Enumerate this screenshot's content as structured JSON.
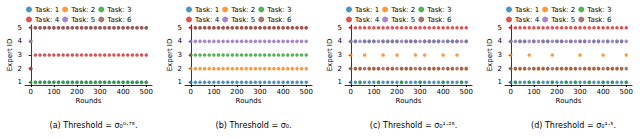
{
  "chart_data": [
    {
      "type": "scatter",
      "title": "(a) Threshold = σ₀⁰·⁷⁵.",
      "x_label": "Rounds",
      "y_label": "Expert ID",
      "x": [
        0,
        20,
        40,
        60,
        80,
        100,
        120,
        140,
        160,
        180,
        200,
        220,
        240,
        260,
        280,
        300,
        320,
        340,
        360,
        380,
        400,
        420,
        440,
        460,
        480,
        500
      ],
      "xlim": [
        -25,
        525
      ],
      "xticks": [
        0,
        100,
        200,
        300,
        400,
        500
      ],
      "ylim": [
        0.8,
        5.2
      ],
      "yticks": [
        1,
        2,
        3,
        4,
        5
      ],
      "grid": false,
      "legend": "top",
      "marker": "o",
      "series": [
        {
          "name": "Task: 1",
          "color": "#1f77b4",
          "values": [
            2,
            1,
            1,
            1,
            1,
            1,
            1,
            1,
            1,
            1,
            1,
            1,
            1,
            1,
            1,
            1,
            1,
            1,
            1,
            1,
            1,
            1,
            1,
            1,
            1,
            1
          ]
        },
        {
          "name": "Task: 2",
          "color": "#ff7f0e",
          "values": [
            4,
            5,
            5,
            5,
            5,
            5,
            5,
            5,
            5,
            5,
            5,
            5,
            5,
            5,
            5,
            5,
            5,
            5,
            5,
            5,
            5,
            5,
            5,
            5,
            5,
            5
          ]
        },
        {
          "name": "Task: 3",
          "color": "#2ca02c",
          "values": [
            1,
            1,
            1,
            1,
            1,
            1,
            1,
            1,
            1,
            1,
            1,
            1,
            1,
            1,
            1,
            1,
            1,
            1,
            1,
            1,
            1,
            1,
            1,
            1,
            1,
            1
          ]
        },
        {
          "name": "Task: 4",
          "color": "#d62728",
          "values": [
            2,
            3,
            3,
            3,
            3,
            3,
            3,
            3,
            3,
            3,
            3,
            3,
            3,
            3,
            3,
            3,
            3,
            3,
            3,
            3,
            3,
            3,
            3,
            3,
            3,
            3
          ]
        },
        {
          "name": "Task: 5",
          "color": "#9467bd",
          "values": [
            4,
            5,
            5,
            5,
            5,
            5,
            5,
            5,
            5,
            5,
            5,
            5,
            5,
            5,
            5,
            5,
            5,
            5,
            5,
            5,
            5,
            5,
            5,
            5,
            5,
            5
          ]
        },
        {
          "name": "Task: 6",
          "color": "#8c564b",
          "values": [
            5,
            5,
            5,
            5,
            5,
            5,
            5,
            5,
            5,
            5,
            5,
            5,
            5,
            5,
            5,
            5,
            5,
            5,
            5,
            5,
            5,
            5,
            5,
            5,
            5,
            5
          ]
        }
      ]
    },
    {
      "type": "scatter",
      "title": "(b) Threshold = σ₀.",
      "x_label": "Rounds",
      "y_label": "Expert ID",
      "x": [
        0,
        20,
        40,
        60,
        80,
        100,
        120,
        140,
        160,
        180,
        200,
        220,
        240,
        260,
        280,
        300,
        320,
        340,
        360,
        380,
        400,
        420,
        440,
        460,
        480,
        500
      ],
      "xlim": [
        -25,
        525
      ],
      "xticks": [
        0,
        100,
        200,
        300,
        400,
        500
      ],
      "ylim": [
        0.8,
        5.2
      ],
      "yticks": [
        1,
        2,
        3,
        4,
        5
      ],
      "grid": false,
      "legend": "top",
      "marker": "o",
      "series": [
        {
          "name": "Task: 1",
          "color": "#1f77b4",
          "values": [
            1,
            1,
            1,
            1,
            1,
            1,
            1,
            1,
            1,
            1,
            1,
            1,
            1,
            1,
            1,
            1,
            1,
            1,
            1,
            1,
            1,
            1,
            1,
            1,
            1,
            1
          ]
        },
        {
          "name": "Task: 2",
          "color": "#ff7f0e",
          "values": [
            2,
            2,
            2,
            2,
            2,
            2,
            2,
            2,
            2,
            2,
            2,
            2,
            2,
            2,
            2,
            2,
            2,
            2,
            2,
            2,
            2,
            2,
            2,
            2,
            2,
            2
          ]
        },
        {
          "name": "Task: 3",
          "color": "#2ca02c",
          "values": [
            3,
            3,
            3,
            3,
            3,
            3,
            3,
            3,
            3,
            3,
            3,
            3,
            3,
            3,
            3,
            3,
            3,
            3,
            3,
            3,
            3,
            3,
            3,
            3,
            3,
            3
          ]
        },
        {
          "name": "Task: 4",
          "color": "#d62728",
          "values": [
            5,
            5,
            5,
            5,
            5,
            5,
            5,
            5,
            5,
            5,
            5,
            5,
            5,
            5,
            5,
            5,
            5,
            5,
            5,
            5,
            5,
            5,
            5,
            5,
            5,
            5
          ]
        },
        {
          "name": "Task: 5",
          "color": "#9467bd",
          "values": [
            4,
            4,
            4,
            4,
            4,
            4,
            4,
            4,
            4,
            4,
            4,
            4,
            4,
            4,
            4,
            4,
            4,
            4,
            4,
            4,
            4,
            4,
            4,
            4,
            4,
            4
          ]
        },
        {
          "name": "Task: 6",
          "color": "#8c564b",
          "values": [
            3,
            5,
            5,
            5,
            5,
            5,
            5,
            5,
            5,
            5,
            5,
            5,
            5,
            5,
            5,
            5,
            5,
            5,
            5,
            5,
            5,
            5,
            5,
            5,
            5,
            5
          ]
        }
      ]
    },
    {
      "type": "scatter",
      "title": "(c) Threshold = σ₀¹·²⁵.",
      "x_label": "Rounds",
      "y_label": "Expert ID",
      "x": [
        0,
        20,
        40,
        60,
        80,
        100,
        120,
        140,
        160,
        180,
        200,
        220,
        240,
        260,
        280,
        300,
        320,
        340,
        360,
        380,
        400,
        420,
        440,
        460,
        480,
        500
      ],
      "xlim": [
        -25,
        525
      ],
      "xticks": [
        0,
        100,
        200,
        300,
        400,
        500
      ],
      "ylim": [
        0.8,
        5.2
      ],
      "yticks": [
        1,
        2,
        3,
        4,
        5
      ],
      "grid": false,
      "legend": "top",
      "marker": "o",
      "series": [
        {
          "name": "Task: 1",
          "color": "#1f77b4",
          "values": [
            1,
            1,
            1,
            1,
            1,
            1,
            1,
            1,
            1,
            1,
            1,
            1,
            1,
            1,
            1,
            1,
            1,
            1,
            1,
            1,
            1,
            1,
            1,
            1,
            1,
            1
          ]
        },
        {
          "name": "Task: 2",
          "color": "#ff7f0e",
          "values": [
            3,
            2,
            2,
            3,
            2,
            2,
            2,
            3,
            2,
            2,
            3,
            2,
            2,
            2,
            3,
            2,
            3,
            2,
            2,
            2,
            3,
            2,
            2,
            3,
            2,
            2
          ]
        },
        {
          "name": "Task: 3",
          "color": "#2ca02c",
          "values": [
            4,
            4,
            1,
            4,
            4,
            4,
            1,
            4,
            4,
            4,
            4,
            1,
            4,
            4,
            4,
            1,
            4,
            4,
            4,
            4,
            1,
            4,
            4,
            4,
            1,
            4
          ]
        },
        {
          "name": "Task: 4",
          "color": "#d62728",
          "values": [
            5,
            5,
            5,
            5,
            5,
            5,
            5,
            5,
            5,
            5,
            5,
            5,
            5,
            5,
            5,
            5,
            5,
            5,
            5,
            5,
            5,
            5,
            5,
            5,
            5,
            5
          ]
        },
        {
          "name": "Task: 5",
          "color": "#9467bd",
          "values": [
            4,
            4,
            4,
            4,
            4,
            4,
            4,
            4,
            4,
            4,
            4,
            4,
            4,
            4,
            4,
            4,
            4,
            4,
            4,
            4,
            4,
            4,
            4,
            4,
            4,
            4
          ]
        },
        {
          "name": "Task: 6",
          "color": "#8c564b",
          "values": [
            2,
            2,
            2,
            2,
            2,
            2,
            2,
            2,
            2,
            2,
            2,
            2,
            2,
            2,
            2,
            2,
            2,
            2,
            2,
            2,
            2,
            2,
            2,
            2,
            2,
            2
          ]
        }
      ]
    },
    {
      "type": "scatter",
      "title": "(d) Threshold = σ₀¹·⁵.",
      "x_label": "Rounds",
      "y_label": "Expert ID",
      "x": [
        0,
        20,
        40,
        60,
        80,
        100,
        120,
        140,
        160,
        180,
        200,
        220,
        240,
        260,
        280,
        300,
        320,
        340,
        360,
        380,
        400,
        420,
        440,
        460,
        480,
        500
      ],
      "xlim": [
        -25,
        525
      ],
      "xticks": [
        0,
        100,
        200,
        300,
        400,
        500
      ],
      "ylim": [
        0.8,
        5.2
      ],
      "yticks": [
        1,
        2,
        3,
        4,
        5
      ],
      "grid": false,
      "legend": "top",
      "marker": "o",
      "series": [
        {
          "name": "Task: 1",
          "color": "#1f77b4",
          "values": [
            1,
            1,
            1,
            1,
            1,
            1,
            1,
            1,
            1,
            1,
            1,
            1,
            1,
            1,
            1,
            1,
            1,
            1,
            1,
            1,
            1,
            1,
            1,
            1,
            1,
            1
          ]
        },
        {
          "name": "Task: 2",
          "color": "#ff7f0e",
          "values": [
            3,
            2,
            2,
            2,
            3,
            2,
            2,
            2,
            2,
            3,
            2,
            2,
            2,
            2,
            2,
            3,
            2,
            2,
            2,
            2,
            3,
            2,
            2,
            2,
            2,
            3
          ]
        },
        {
          "name": "Task: 3",
          "color": "#2ca02c",
          "values": [
            4,
            1,
            4,
            4,
            1,
            4,
            1,
            4,
            4,
            1,
            4,
            4,
            1,
            4,
            1,
            4,
            4,
            1,
            4,
            4,
            1,
            4,
            1,
            4,
            4,
            1
          ]
        },
        {
          "name": "Task: 4",
          "color": "#d62728",
          "values": [
            5,
            5,
            5,
            5,
            5,
            5,
            5,
            5,
            5,
            5,
            5,
            5,
            5,
            5,
            5,
            5,
            5,
            5,
            5,
            5,
            5,
            5,
            5,
            5,
            5,
            5
          ]
        },
        {
          "name": "Task: 5",
          "color": "#9467bd",
          "values": [
            4,
            4,
            4,
            4,
            4,
            4,
            4,
            4,
            4,
            4,
            4,
            4,
            4,
            4,
            4,
            4,
            4,
            4,
            4,
            4,
            4,
            4,
            4,
            4,
            4,
            4
          ]
        },
        {
          "name": "Task: 6",
          "color": "#8c564b",
          "values": [
            2,
            2,
            2,
            2,
            2,
            2,
            2,
            2,
            2,
            2,
            2,
            2,
            2,
            2,
            2,
            2,
            2,
            2,
            2,
            2,
            2,
            2,
            2,
            2,
            2,
            2
          ]
        }
      ]
    }
  ]
}
